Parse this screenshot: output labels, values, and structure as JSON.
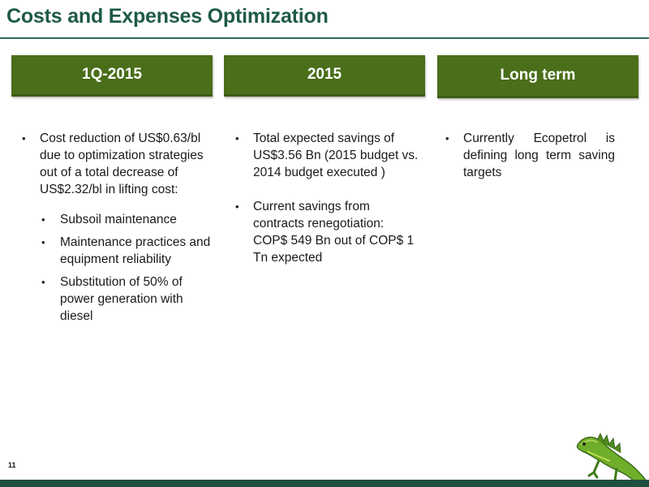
{
  "title": "Costs and Expenses Optimization",
  "page_number": "11",
  "colors": {
    "title": "#1f5a47",
    "header_box": "#4a6e1a",
    "footer_bar": "#1f4f3f"
  },
  "columns": [
    {
      "header": "1Q-2015",
      "bullets": [
        {
          "text": "Cost reduction of US$0.63/bl due to optimization strategies out of a total decrease of US$2.32/bl in lifting cost:",
          "sub": [
            "Subsoil maintenance",
            "Maintenance practices and equipment reliability",
            "Substitution of 50% of power generation with diesel"
          ]
        }
      ]
    },
    {
      "header": "2015",
      "bullets": [
        {
          "text": "Total  expected savings of US$3.56 Bn (2015 budget vs. 2014 budget executed )"
        },
        {
          "text": "Current savings from contracts renegotiation: COP$ 549 Bn out of COP$ 1 Tn expected"
        }
      ]
    },
    {
      "header": "Long term",
      "bullets": [
        {
          "text": "Currently Ecopetrol is defining long term saving targets"
        }
      ]
    }
  ],
  "logo": "iguana-logo"
}
